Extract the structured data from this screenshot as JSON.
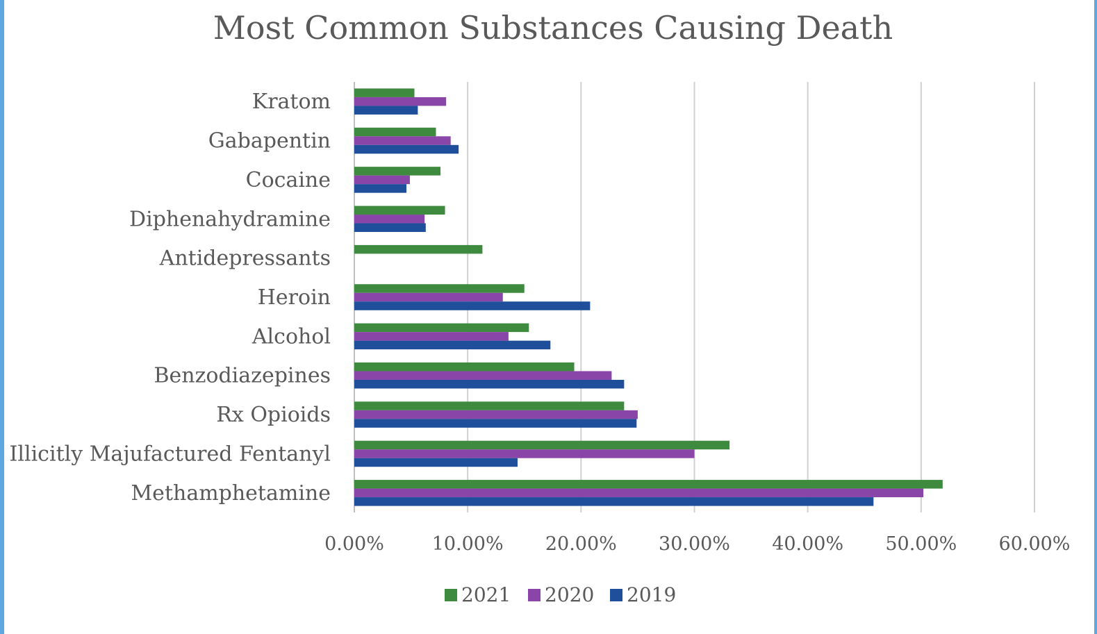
{
  "chart_data": {
    "type": "bar",
    "orientation": "horizontal",
    "title": "Most Common Substances Causing Death",
    "xlabel": "",
    "ylabel": "",
    "xlim": [
      0,
      60
    ],
    "x_ticks": [
      "0.00%",
      "10.00%",
      "20.00%",
      "30.00%",
      "40.00%",
      "50.00%",
      "60.00%"
    ],
    "categories": [
      "Kratom",
      "Gabapentin",
      "Cocaine",
      "Diphenahydramine",
      "Antidepressants",
      "Heroin",
      "Alcohol",
      "Benzodiazepines",
      "Rx Opioids",
      "Illicitly Majufactured Fentanyl",
      "Methamphetamine"
    ],
    "series": [
      {
        "name": "2021",
        "color": "#3e8a3e",
        "values": [
          5.3,
          7.2,
          7.6,
          8.0,
          11.3,
          15.0,
          15.4,
          19.4,
          23.8,
          33.1,
          51.9
        ]
      },
      {
        "name": "2020",
        "color": "#8a45a8",
        "values": [
          8.1,
          8.5,
          4.9,
          6.2,
          0,
          13.1,
          13.6,
          22.7,
          25.0,
          30.0,
          50.2
        ]
      },
      {
        "name": "2019",
        "color": "#1f4e9a",
        "values": [
          5.6,
          9.2,
          4.6,
          6.3,
          0,
          20.8,
          17.3,
          23.8,
          24.9,
          14.4,
          45.8
        ]
      }
    ],
    "grid": "vertical",
    "legend_position": "bottom"
  }
}
